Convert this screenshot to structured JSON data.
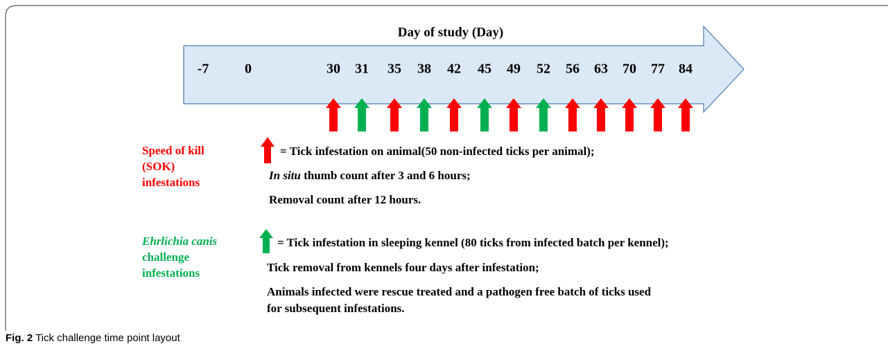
{
  "timeline": {
    "title": "Day of study (Day)",
    "days": [
      "-7",
      "0",
      "30",
      "31",
      "35",
      "38",
      "42",
      "45",
      "49",
      "52",
      "56",
      "63",
      "70",
      "77",
      "84"
    ]
  },
  "legend": [
    {
      "label": [
        "Speed of kill",
        "(SOK)",
        "infestations"
      ],
      "key": "= Tick infestation on animal(50 non-infected ticks per animal);",
      "notes": [
        {
          "italic": "In situ",
          "text": " thumb count after 3 and 6 hours;"
        },
        {
          "text": "Removal count after 12 hours."
        }
      ]
    },
    {
      "label": [
        "Ehrlichia canis",
        "challenge",
        "infestations"
      ],
      "key": "= Tick infestation in sleeping kennel (80 ticks from infected batch per kennel);",
      "notes": [
        {
          "text": "Tick removal from kennels four days after infestation;"
        },
        {
          "text": "Animals infected were rescue treated and a pathogen free batch of ticks used"
        },
        {
          "text": "for subsequent infestations."
        }
      ]
    }
  ],
  "caption": {
    "label": "Fig. 2",
    "text": " Tick challenge time point layout"
  }
}
